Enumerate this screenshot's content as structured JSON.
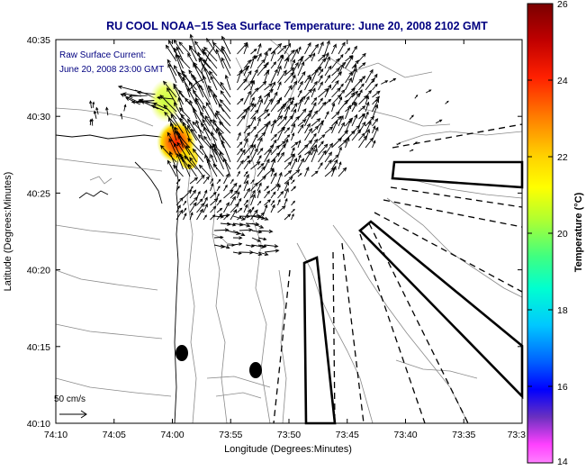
{
  "title": "RU COOL   NOAA−15  Sea Surface Temperature:  June 20, 2008 2102 GMT",
  "annotation": {
    "line1": "Raw Surface Current:",
    "line2": "June 20, 2008 23:00 GMT"
  },
  "axes": {
    "xlabel": "Longitude (Degrees:Minutes)",
    "ylabel": "Latitude (Degrees:Minutes)",
    "xticks": [
      "74:10",
      "74:05",
      "74:00",
      "73:55",
      "73:50",
      "73:45",
      "73:40",
      "73:35",
      "73:3"
    ],
    "yticks": [
      "40:35",
      "40:30",
      "40:25",
      "40:20",
      "40:15",
      "40:10"
    ]
  },
  "scale_label": "50 cm/s",
  "colorbar": {
    "label": "Temperature (°C)",
    "ticks": [
      "26",
      "24",
      "22",
      "20",
      "18",
      "16",
      "14"
    ],
    "min": 14,
    "max": 26
  },
  "colors": {
    "title": "#000080",
    "annotation": "#000080",
    "frame": "#000000"
  }
}
